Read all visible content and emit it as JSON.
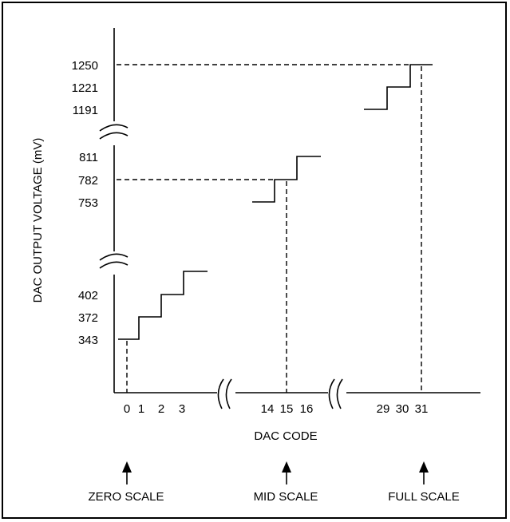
{
  "diagram": {
    "y_axis_label": "DAC OUTPUT VOLTAGE (mV)",
    "x_axis_label": "DAC CODE",
    "y_tick_labels": [
      {
        "name": "y-tick-1250",
        "text": "1250"
      },
      {
        "name": "y-tick-1221",
        "text": "1221"
      },
      {
        "name": "y-tick-1191",
        "text": "1191"
      },
      {
        "name": "y-tick-811",
        "text": "811"
      },
      {
        "name": "y-tick-782",
        "text": "782"
      },
      {
        "name": "y-tick-753",
        "text": "753"
      },
      {
        "name": "y-tick-402",
        "text": "402"
      },
      {
        "name": "y-tick-372",
        "text": "372"
      },
      {
        "name": "y-tick-343",
        "text": "343"
      }
    ],
    "x_tick_labels": [
      {
        "name": "x-tick-0",
        "text": "0"
      },
      {
        "name": "x-tick-1",
        "text": "1"
      },
      {
        "name": "x-tick-2",
        "text": "2"
      },
      {
        "name": "x-tick-3",
        "text": "3"
      },
      {
        "name": "x-tick-14",
        "text": "14"
      },
      {
        "name": "x-tick-15",
        "text": "15"
      },
      {
        "name": "x-tick-16",
        "text": "16"
      },
      {
        "name": "x-tick-29",
        "text": "29"
      },
      {
        "name": "x-tick-30",
        "text": "30"
      },
      {
        "name": "x-tick-31",
        "text": "31"
      }
    ],
    "markers": [
      {
        "name": "zero-scale-marker",
        "label": "ZERO SCALE"
      },
      {
        "name": "mid-scale-marker",
        "label": "MID SCALE"
      },
      {
        "name": "full-scale-marker",
        "label": "FULL SCALE"
      }
    ]
  }
}
